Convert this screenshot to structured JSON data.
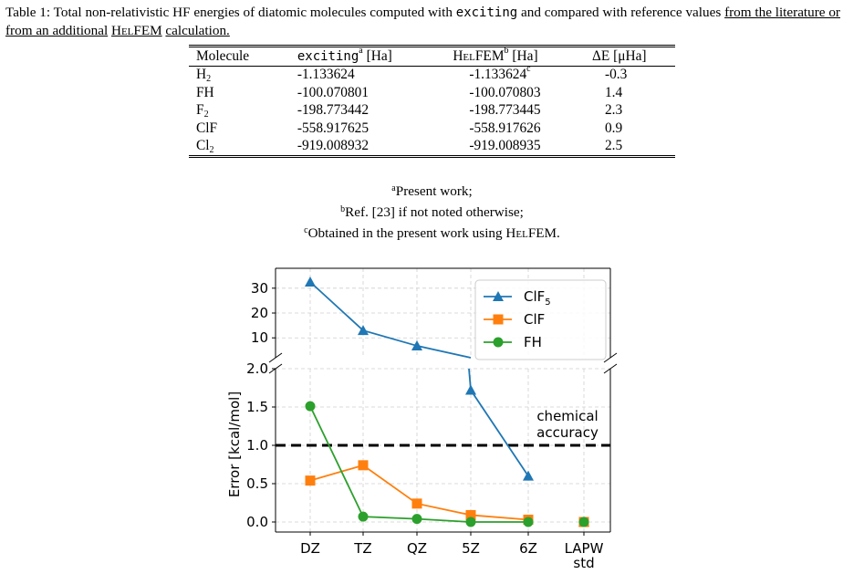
{
  "caption": {
    "label": "Table 1:",
    "text_a": "Total non-relativistic HF energies of diatomic molecules computed with",
    "code": "exciting",
    "text_b": "and compared with reference values",
    "text_c": "from the literature or from an additional",
    "helfem": "HelFEM",
    "text_d": "calculation."
  },
  "table": {
    "headers": {
      "molecule": "Molecule",
      "exciting": "exciting",
      "exciting_note": "a",
      "exciting_unit": "[Ha]",
      "helfem": "HelFEM",
      "helfem_note": "b",
      "helfem_unit": "[Ha]",
      "delta": "ΔE [μHa]"
    },
    "rows": [
      {
        "mol": "H",
        "sub": "2",
        "exciting": "-1.133624",
        "helfem": "-1.133624",
        "note": "c",
        "delta": "-0.3"
      },
      {
        "mol": "FH",
        "sub": "",
        "exciting": "-100.070801",
        "helfem": "-100.070803",
        "note": "",
        "delta": "1.4"
      },
      {
        "mol": "F",
        "sub": "2",
        "exciting": "-198.773442",
        "helfem": "-198.773445",
        "note": "",
        "delta": "2.3"
      },
      {
        "mol": "ClF",
        "sub": "",
        "exciting": "-558.917625",
        "helfem": "-558.917626",
        "note": "",
        "delta": "0.9"
      },
      {
        "mol": "Cl",
        "sub": "2",
        "exciting": "-919.008932",
        "helfem": "-919.008935",
        "note": "",
        "delta": "2.5"
      }
    ]
  },
  "notes": {
    "a_mark": "a",
    "a_text": "Present work;",
    "b_mark": "b",
    "b_text": "Ref. [23] if not noted otherwise;",
    "c_mark": "c",
    "c_text": "Obtained in the present work using",
    "c_helfem": "HelFEM",
    "c_end": "."
  },
  "chart_data": {
    "type": "line",
    "categories": [
      "DZ",
      "TZ",
      "QZ",
      "5Z",
      "6Z",
      "LAPW std"
    ],
    "ylabel": "Error [kcal/mol]",
    "broken_axis": true,
    "upper_ylim": [
      2,
      35
    ],
    "upper_ticks": [
      10,
      20,
      30
    ],
    "lower_ylim": [
      -0.08,
      2.0
    ],
    "lower_ticks": [
      "0.0",
      "0.5",
      "1.0",
      "1.5",
      "2.0"
    ],
    "grid": true,
    "legend_position": "top-right",
    "series": [
      {
        "name": "ClF5",
        "label_main": "ClF",
        "label_sub": "5",
        "color": "#1f77b4",
        "marker": "triangle",
        "values": [
          32.5,
          13.0,
          6.8,
          2.0,
          1.72,
          0.6
        ],
        "last": 0.0
      },
      {
        "name": "ClF",
        "label_main": "ClF",
        "label_sub": "",
        "color": "#ff7f0e",
        "marker": "square",
        "values": [
          0.54,
          0.74,
          0.24,
          0.09,
          0.03,
          0.0
        ]
      },
      {
        "name": "FH",
        "label_main": "FH",
        "label_sub": "",
        "color": "#2ca02c",
        "marker": "circle",
        "values": [
          1.51,
          0.07,
          0.04,
          0.0,
          0.0,
          0.0
        ]
      }
    ],
    "reference_line": {
      "value": 1.0,
      "label_1": "chemical",
      "label_2": "accuracy"
    }
  }
}
